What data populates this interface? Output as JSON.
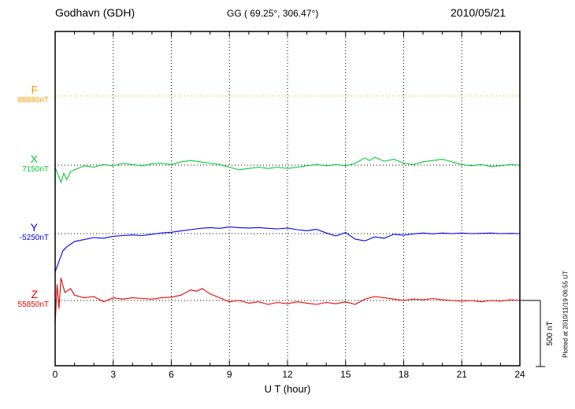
{
  "header": {
    "station": "Godhavn (GDH)",
    "coords": "GG ( 69.25°, 306.47°)",
    "date": "2010/05/21"
  },
  "xlabel": "U T (hour)",
  "scale_label": "500 nT",
  "plotted_at": "Plotted at 2010/11/19 06:55 UT",
  "chart_data": {
    "type": "line",
    "title": "Godhavn (GDH) magnetogram 2010/05/21",
    "xlabel": "U T (hour)",
    "x_range": [
      0,
      24
    ],
    "x_ticks": [
      0,
      3,
      6,
      9,
      12,
      15,
      18,
      21,
      24
    ],
    "minor_tick_every_hours": 1,
    "grid": "dotted-vertical-at-major-ticks",
    "legend_position": "left-margin",
    "scale_bar": {
      "label": "500 nT",
      "nT": 500
    },
    "series": [
      {
        "name": "F",
        "baseline_label": "88880nT",
        "baseline_nT": 88880,
        "color": "#ff9900",
        "baseline_color": "#ff9900",
        "line_style": "dotted",
        "x": [
          0,
          24
        ],
        "offsets_nT": [
          0,
          0
        ]
      },
      {
        "name": "X",
        "baseline_label": "7150nT",
        "baseline_nT": 7150,
        "color": "#00cc33",
        "baseline_color": "#000000",
        "line_style": "solid",
        "x": [
          0,
          0.15,
          0.3,
          0.45,
          0.6,
          0.8,
          1,
          1.25,
          1.5,
          2,
          2.5,
          3,
          3.5,
          4,
          4.5,
          5,
          5.5,
          6,
          6.5,
          7,
          7.5,
          8,
          8.5,
          9,
          9.5,
          10,
          10.5,
          11,
          11.5,
          12,
          12.5,
          13,
          13.5,
          14,
          14.5,
          15,
          15.5,
          16,
          16.25,
          16.5,
          17,
          17.5,
          18,
          18.5,
          19,
          19.5,
          20,
          20.5,
          21,
          21.5,
          22,
          22.5,
          23,
          23.5,
          24
        ],
        "offsets_nT": [
          -20,
          -70,
          -130,
          -60,
          -110,
          -50,
          -35,
          -20,
          -5,
          -15,
          5,
          -5,
          15,
          5,
          -5,
          10,
          15,
          5,
          25,
          35,
          25,
          15,
          5,
          -15,
          -35,
          -25,
          -15,
          -25,
          -15,
          -25,
          -15,
          -5,
          5,
          -5,
          5,
          -5,
          15,
          55,
          35,
          60,
          30,
          45,
          15,
          5,
          25,
          35,
          45,
          25,
          5,
          -5,
          5,
          -10,
          -5,
          5,
          0
        ]
      },
      {
        "name": "Y",
        "baseline_label": "-5250nT",
        "baseline_nT": -5250,
        "color": "#0000ee",
        "baseline_color": "#000000",
        "line_style": "solid",
        "x": [
          0,
          0.2,
          0.4,
          0.6,
          0.8,
          1,
          1.5,
          2,
          2.5,
          3,
          3.5,
          4,
          4.5,
          5,
          5.5,
          6,
          6.5,
          7,
          7.5,
          8,
          8.5,
          9,
          9.5,
          10,
          10.5,
          11,
          11.5,
          12,
          12.5,
          13,
          13.5,
          14,
          14.5,
          15,
          15.5,
          16,
          16.5,
          17,
          17.5,
          18,
          18.5,
          19,
          19.5,
          20,
          20.5,
          21,
          21.5,
          22,
          22.5,
          23,
          23.5,
          24
        ],
        "offsets_nT": [
          -290,
          -210,
          -130,
          -100,
          -80,
          -60,
          -45,
          -30,
          -35,
          -20,
          -15,
          -10,
          -15,
          -5,
          5,
          10,
          20,
          30,
          40,
          45,
          40,
          50,
          45,
          42,
          46,
          40,
          36,
          42,
          30,
          22,
          32,
          5,
          -18,
          8,
          -42,
          -55,
          -25,
          -35,
          -5,
          -12,
          -2,
          4,
          -2,
          4,
          0,
          4,
          0,
          2,
          4,
          0,
          2,
          0
        ]
      },
      {
        "name": "Z",
        "baseline_label": "55850nT",
        "baseline_nT": 55850,
        "color": "#ee0000",
        "baseline_color": "#000000",
        "line_style": "solid",
        "x": [
          0,
          0.1,
          0.2,
          0.3,
          0.5,
          0.8,
          1,
          1.5,
          2,
          2.5,
          3,
          3.5,
          4,
          4.5,
          5,
          5.5,
          6,
          6.5,
          7,
          7.3,
          7.6,
          8,
          8.5,
          9,
          9.5,
          10,
          10.5,
          11,
          11.5,
          12,
          12.5,
          13,
          13.5,
          14,
          14.5,
          15,
          15.5,
          16,
          16.5,
          17,
          17.5,
          18,
          18.5,
          19,
          19.5,
          20,
          20.5,
          21,
          21.5,
          22,
          22.5,
          23,
          23.5,
          24
        ],
        "offsets_nT": [
          -180,
          120,
          -60,
          170,
          60,
          90,
          40,
          20,
          30,
          -10,
          20,
          10,
          20,
          15,
          10,
          20,
          25,
          40,
          80,
          70,
          90,
          50,
          20,
          -10,
          0,
          -20,
          -10,
          -30,
          -15,
          -25,
          -10,
          -20,
          -30,
          -15,
          -25,
          -10,
          -30,
          10,
          30,
          20,
          10,
          0,
          10,
          5,
          15,
          5,
          0,
          -5,
          0,
          -10,
          0,
          -5,
          5,
          0
        ]
      }
    ]
  }
}
